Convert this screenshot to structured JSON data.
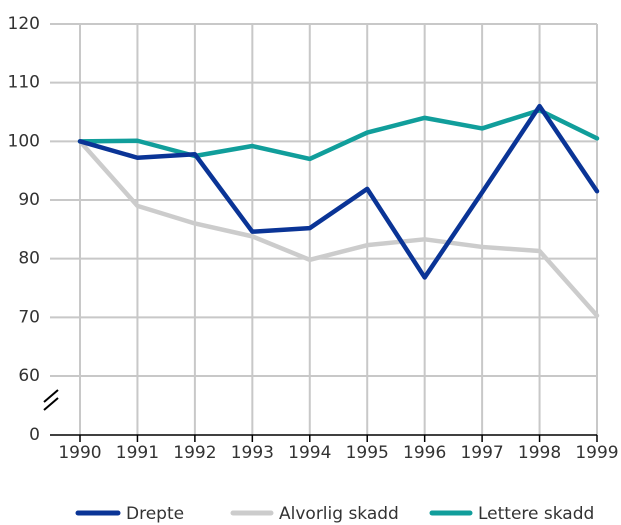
{
  "chart_data": {
    "type": "line",
    "x": [
      "1990",
      "1991",
      "1992",
      "1993",
      "1994",
      "1995",
      "1996",
      "1997",
      "1998",
      "1999"
    ],
    "series": [
      {
        "name": "Drepte",
        "color": "#0a3496",
        "values": [
          100,
          97.2,
          97.8,
          84.6,
          85.2,
          91.9,
          76.8,
          91.3,
          106,
          91.5
        ]
      },
      {
        "name": "Alvorlig skadd",
        "color": "#cccccc",
        "values": [
          100,
          89,
          86,
          83.8,
          79.8,
          82.3,
          83.3,
          82,
          81.3,
          70.3
        ]
      },
      {
        "name": "Lettere skadd",
        "color": "#119e9b",
        "values": [
          100,
          100.1,
          97.5,
          99.2,
          97,
          101.5,
          104,
          102.2,
          105.3,
          100.5
        ]
      }
    ],
    "ylim": [
      0,
      120
    ],
    "yticks": [
      0,
      60,
      70,
      80,
      90,
      100,
      110,
      120
    ],
    "y_break": [
      0,
      60
    ],
    "grid": true,
    "legend": "bottom"
  }
}
